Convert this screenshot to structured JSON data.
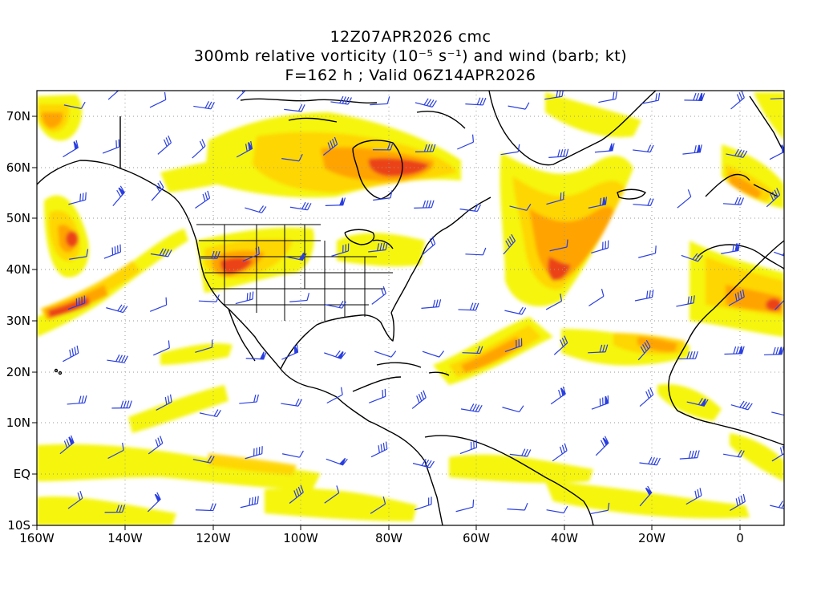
{
  "title": {
    "line1": "12Z07APR2026 cmc",
    "line2": "300mb relative vorticity (10⁻⁵ s⁻¹) and wind (barb; kt)",
    "line3": "F=162 h ; Valid 06Z14APR2026"
  },
  "axes": {
    "lat_labels": [
      "70N",
      "60N",
      "50N",
      "40N",
      "30N",
      "20N",
      "10N",
      "EQ",
      "10S"
    ],
    "lon_labels": [
      "160W",
      "140W",
      "120W",
      "100W",
      "80W",
      "60W",
      "40W",
      "20W",
      "0"
    ],
    "lat_range": [
      -10,
      75
    ],
    "lon_range": [
      -160,
      10
    ],
    "grid": "dotted"
  },
  "colors": {
    "shade_light": "#f5f500",
    "shade_mid": "#ffd500",
    "shade_orange": "#ffa000",
    "shade_deep": "#f56a0e",
    "shade_red": "#e8391c",
    "barb": "#2a3fe0",
    "coast": "#000000"
  }
}
